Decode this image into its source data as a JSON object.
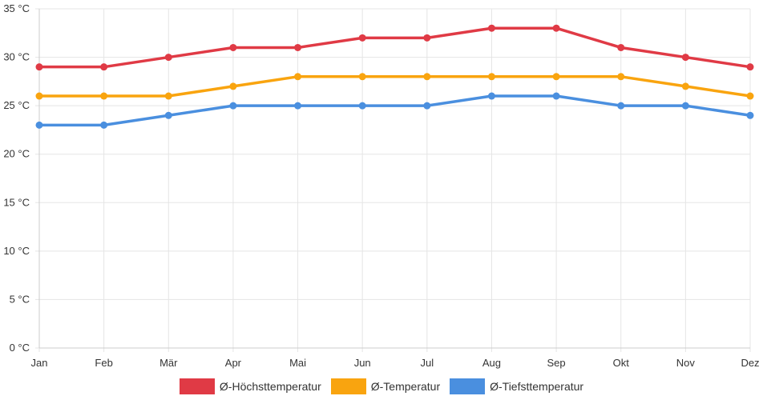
{
  "chart_data": {
    "type": "line",
    "categories": [
      "Jan",
      "Feb",
      "Mär",
      "Apr",
      "Mai",
      "Jun",
      "Jul",
      "Aug",
      "Sep",
      "Okt",
      "Nov",
      "Dez"
    ],
    "series": [
      {
        "name": "Ø-Höchsttemperatur",
        "color": "#e03a45",
        "values": [
          29,
          29,
          30,
          31,
          31,
          32,
          32,
          33,
          33,
          31,
          30,
          29
        ]
      },
      {
        "name": "Ø-Temperatur",
        "color": "#f9a40f",
        "values": [
          26,
          26,
          26,
          27,
          28,
          28,
          28,
          28,
          28,
          28,
          27,
          26
        ]
      },
      {
        "name": "Ø-Tiefsttemperatur",
        "color": "#4a8fdf",
        "values": [
          23,
          23,
          24,
          25,
          25,
          25,
          25,
          26,
          26,
          25,
          25,
          24
        ]
      }
    ],
    "y_ticks": [
      "0 °C",
      "5 °C",
      "10 °C",
      "15 °C",
      "20 °C",
      "25 °C",
      "30 °C",
      "35 °C"
    ],
    "ylim": [
      0,
      35
    ],
    "grid": true,
    "legend_position": "bottom"
  }
}
